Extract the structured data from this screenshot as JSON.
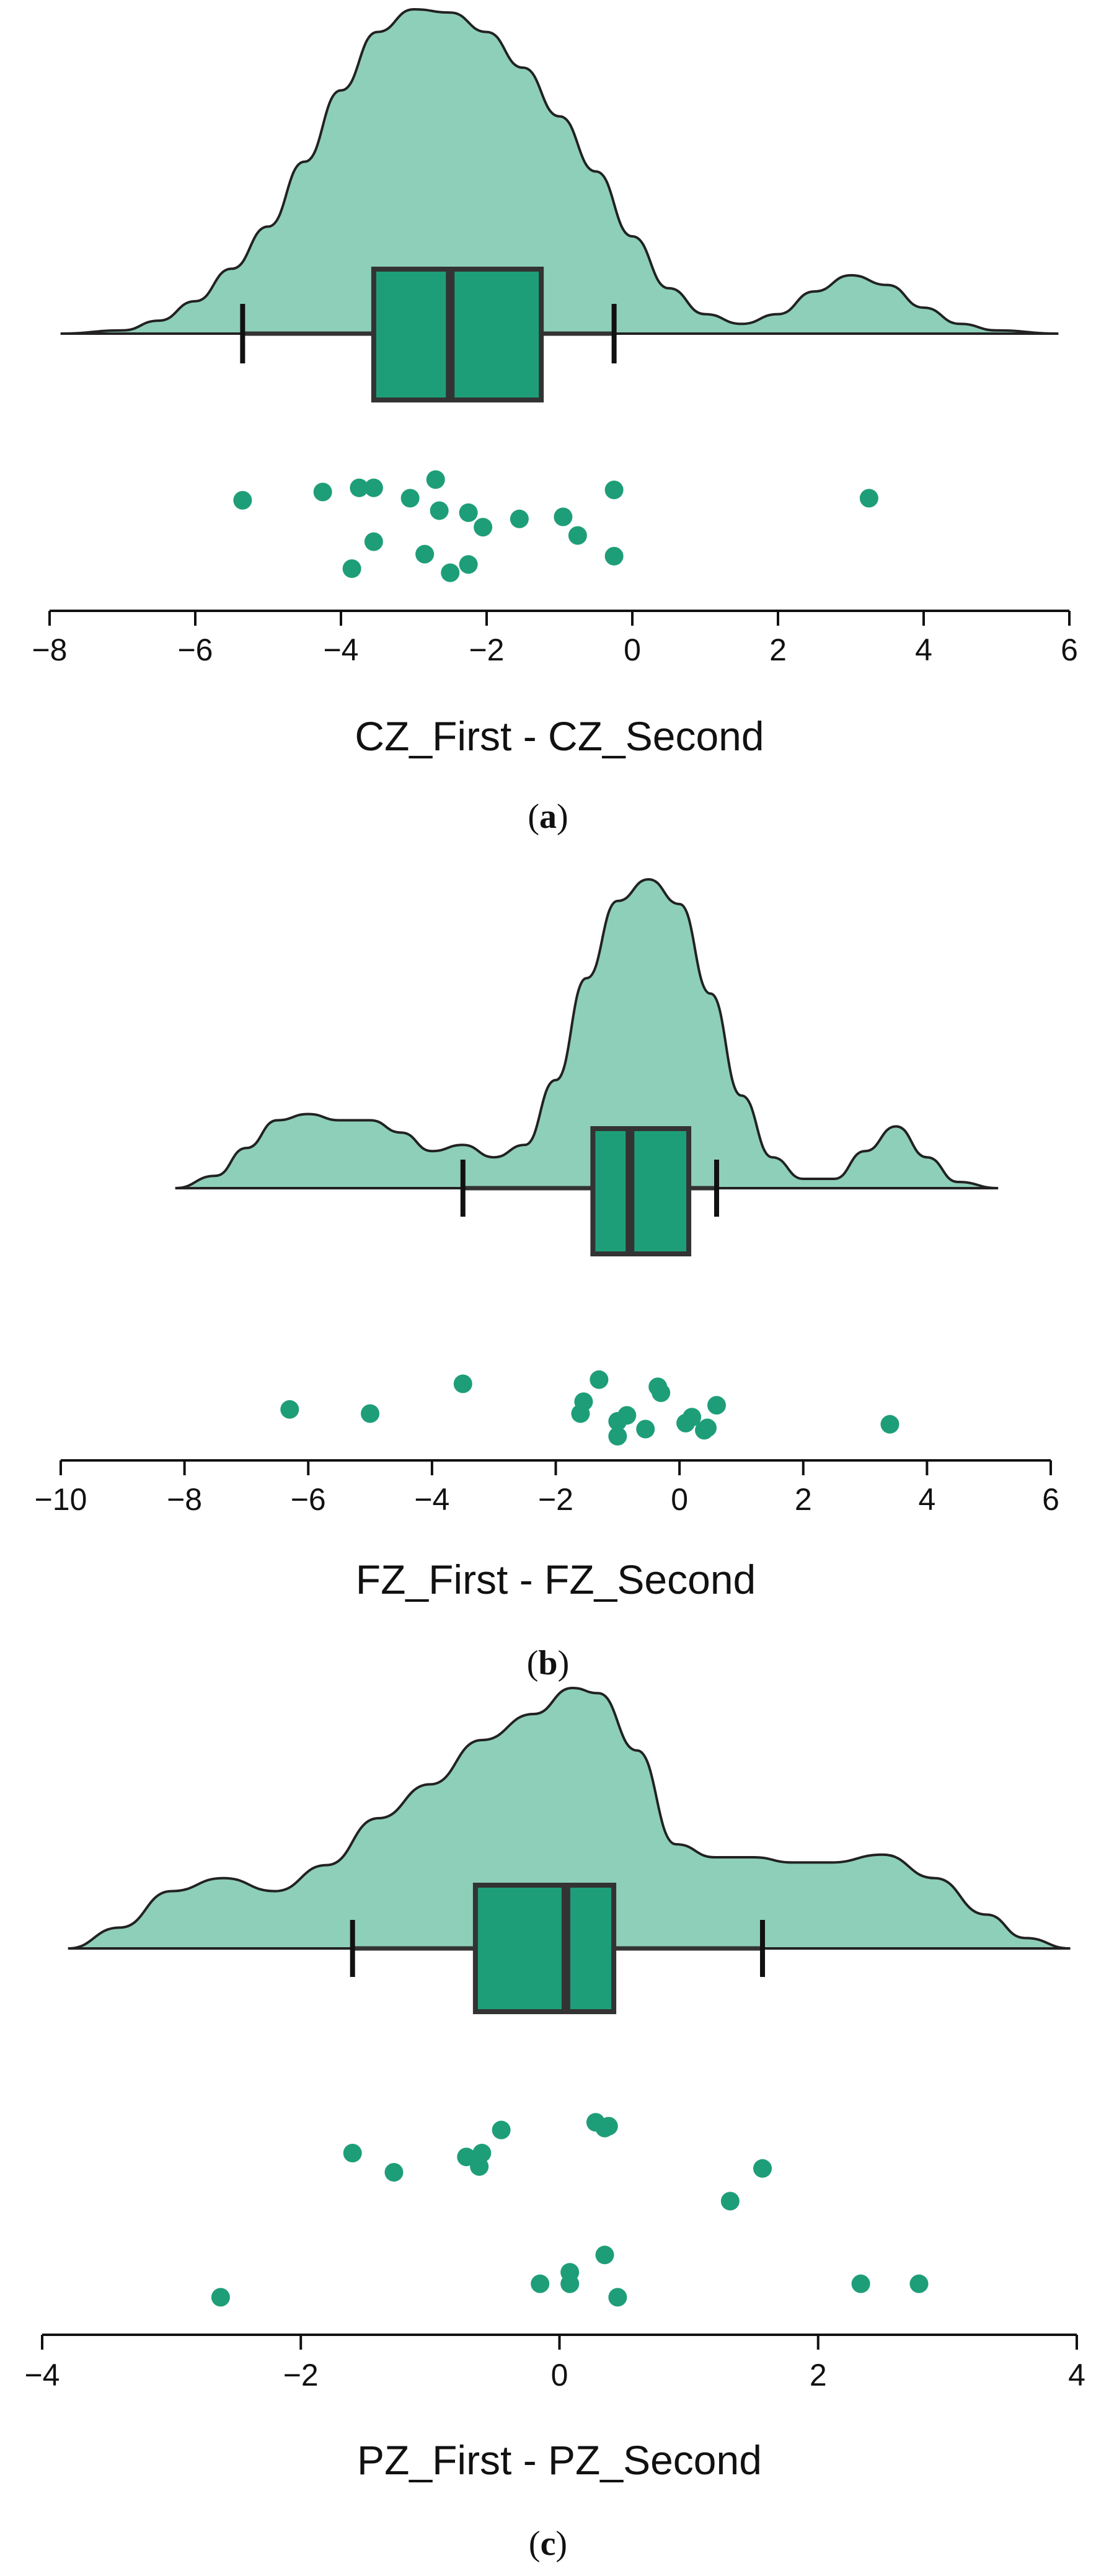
{
  "colors": {
    "density_fill": "#8ecfb9",
    "box_fill": "#1e9e78",
    "point": "#1e9e78",
    "stroke": "#333333"
  },
  "chart_data": [
    {
      "type": "raincloud",
      "xlabel": "CZ_First - CZ_Second",
      "caption": "a",
      "xlim": [
        -8,
        6
      ],
      "ticks": [
        -8,
        -6,
        -4,
        -2,
        0,
        2,
        4,
        6
      ],
      "tick_labels": [
        "−8",
        "−6",
        "−4",
        "−2",
        "0",
        "2",
        "4",
        "6"
      ],
      "box": {
        "whisker_low": -5.35,
        "q1": -3.55,
        "median": -2.5,
        "q3": -1.25,
        "whisker_high": -0.25
      },
      "density": [
        [
          -7.85,
          0.0
        ],
        [
          -7.0,
          0.01
        ],
        [
          -6.5,
          0.04
        ],
        [
          -6.0,
          0.1
        ],
        [
          -5.5,
          0.2
        ],
        [
          -5.0,
          0.33
        ],
        [
          -4.5,
          0.53
        ],
        [
          -4.0,
          0.75
        ],
        [
          -3.5,
          0.93
        ],
        [
          -3.0,
          1.0
        ],
        [
          -2.5,
          0.99
        ],
        [
          -2.0,
          0.93
        ],
        [
          -1.5,
          0.82
        ],
        [
          -1.0,
          0.67
        ],
        [
          -0.5,
          0.5
        ],
        [
          0.0,
          0.3
        ],
        [
          0.5,
          0.14
        ],
        [
          1.0,
          0.06
        ],
        [
          1.5,
          0.03
        ],
        [
          2.0,
          0.06
        ],
        [
          2.5,
          0.13
        ],
        [
          3.0,
          0.18
        ],
        [
          3.5,
          0.15
        ],
        [
          4.0,
          0.08
        ],
        [
          4.5,
          0.03
        ],
        [
          5.0,
          0.01
        ],
        [
          5.85,
          0.0
        ]
      ],
      "points": [
        [
          -5.35,
          0.22
        ],
        [
          -4.25,
          0.14
        ],
        [
          -3.75,
          0.1
        ],
        [
          -3.55,
          0.1
        ],
        [
          -3.05,
          0.2
        ],
        [
          -2.65,
          0.32
        ],
        [
          -2.7,
          0.02
        ],
        [
          -2.25,
          0.34
        ],
        [
          -2.05,
          0.48
        ],
        [
          -1.55,
          0.4
        ],
        [
          -0.95,
          0.38
        ],
        [
          -0.25,
          0.12
        ],
        [
          3.25,
          0.2
        ],
        [
          -3.55,
          0.62
        ],
        [
          -2.85,
          0.74
        ],
        [
          -3.85,
          0.88
        ],
        [
          -2.5,
          0.92
        ],
        [
          -2.25,
          0.84
        ],
        [
          -0.75,
          0.56
        ],
        [
          -0.25,
          0.76
        ]
      ]
    },
    {
      "type": "raincloud",
      "xlabel": "FZ_First - FZ_Second",
      "caption": "b",
      "xlim": [
        -10,
        6
      ],
      "ticks": [
        -10,
        -8,
        -6,
        -4,
        -2,
        0,
        2,
        4,
        6
      ],
      "tick_labels": [
        "−10",
        "−8",
        "−6",
        "−4",
        "−2",
        "0",
        "2",
        "4",
        "6"
      ],
      "box": {
        "whisker_low": -3.5,
        "q1": -1.4,
        "median": -0.8,
        "q3": 0.15,
        "whisker_high": 0.6
      },
      "density": [
        [
          -8.15,
          0.0
        ],
        [
          -7.5,
          0.04
        ],
        [
          -7.0,
          0.13
        ],
        [
          -6.5,
          0.22
        ],
        [
          -6.0,
          0.24
        ],
        [
          -5.5,
          0.22
        ],
        [
          -5.0,
          0.22
        ],
        [
          -4.5,
          0.18
        ],
        [
          -4.0,
          0.12
        ],
        [
          -3.5,
          0.14
        ],
        [
          -3.0,
          0.1
        ],
        [
          -2.5,
          0.14
        ],
        [
          -2.0,
          0.35
        ],
        [
          -1.5,
          0.68
        ],
        [
          -1.0,
          0.93
        ],
        [
          -0.5,
          1.0
        ],
        [
          0.0,
          0.92
        ],
        [
          0.5,
          0.63
        ],
        [
          1.0,
          0.3
        ],
        [
          1.5,
          0.1
        ],
        [
          2.0,
          0.03
        ],
        [
          2.5,
          0.03
        ],
        [
          3.0,
          0.12
        ],
        [
          3.5,
          0.2
        ],
        [
          4.0,
          0.1
        ],
        [
          4.5,
          0.02
        ],
        [
          5.15,
          0.0
        ]
      ],
      "points": [
        [
          -3.5,
          0.12
        ],
        [
          -1.3,
          0.05
        ],
        [
          -0.35,
          0.17
        ],
        [
          -0.3,
          0.27
        ],
        [
          -1.55,
          0.42
        ],
        [
          0.6,
          0.48
        ],
        [
          -6.3,
          0.55
        ],
        [
          -5.0,
          0.62
        ],
        [
          -1.6,
          0.62
        ],
        [
          -0.85,
          0.65
        ],
        [
          0.2,
          0.68
        ],
        [
          -1.0,
          0.75
        ],
        [
          0.1,
          0.78
        ],
        [
          -0.55,
          0.88
        ],
        [
          0.45,
          0.86
        ],
        [
          0.4,
          0.9
        ],
        [
          3.4,
          0.8
        ],
        [
          -1.0,
          1.0
        ]
      ]
    },
    {
      "type": "raincloud",
      "xlabel": "PZ_First - PZ_Second",
      "caption": "c",
      "xlim": [
        -4,
        4
      ],
      "ticks": [
        -4,
        -2,
        0,
        2,
        4
      ],
      "tick_labels": [
        "−4",
        "−2",
        "0",
        "2",
        "4"
      ],
      "box": {
        "whisker_low": -1.6,
        "q1": -0.65,
        "median": 0.05,
        "q3": 0.42,
        "whisker_high": 1.57
      },
      "density": [
        [
          -3.8,
          0.0
        ],
        [
          -3.4,
          0.08
        ],
        [
          -3.0,
          0.22
        ],
        [
          -2.6,
          0.27
        ],
        [
          -2.2,
          0.22
        ],
        [
          -1.8,
          0.32
        ],
        [
          -1.4,
          0.5
        ],
        [
          -1.0,
          0.63
        ],
        [
          -0.6,
          0.8
        ],
        [
          -0.2,
          0.9
        ],
        [
          0.1,
          1.0
        ],
        [
          0.3,
          0.98
        ],
        [
          0.6,
          0.76
        ],
        [
          0.9,
          0.4
        ],
        [
          1.2,
          0.35
        ],
        [
          1.5,
          0.35
        ],
        [
          1.8,
          0.33
        ],
        [
          2.1,
          0.33
        ],
        [
          2.5,
          0.36
        ],
        [
          2.9,
          0.27
        ],
        [
          3.3,
          0.13
        ],
        [
          3.6,
          0.04
        ],
        [
          3.95,
          0.0
        ]
      ],
      "points": [
        [
          -1.6,
          0.2
        ],
        [
          -1.28,
          0.3
        ],
        [
          -0.72,
          0.22
        ],
        [
          -0.62,
          0.27
        ],
        [
          -0.6,
          0.2
        ],
        [
          -0.45,
          0.08
        ],
        [
          0.28,
          0.04
        ],
        [
          0.35,
          0.07
        ],
        [
          0.38,
          0.06
        ],
        [
          1.57,
          0.28
        ],
        [
          1.32,
          0.45
        ],
        [
          -2.62,
          0.95
        ],
        [
          -0.15,
          0.88
        ],
        [
          0.08,
          0.82
        ],
        [
          0.08,
          0.88
        ],
        [
          0.35,
          0.73
        ],
        [
          0.45,
          0.95
        ],
        [
          2.33,
          0.88
        ],
        [
          2.78,
          0.88
        ]
      ]
    }
  ]
}
